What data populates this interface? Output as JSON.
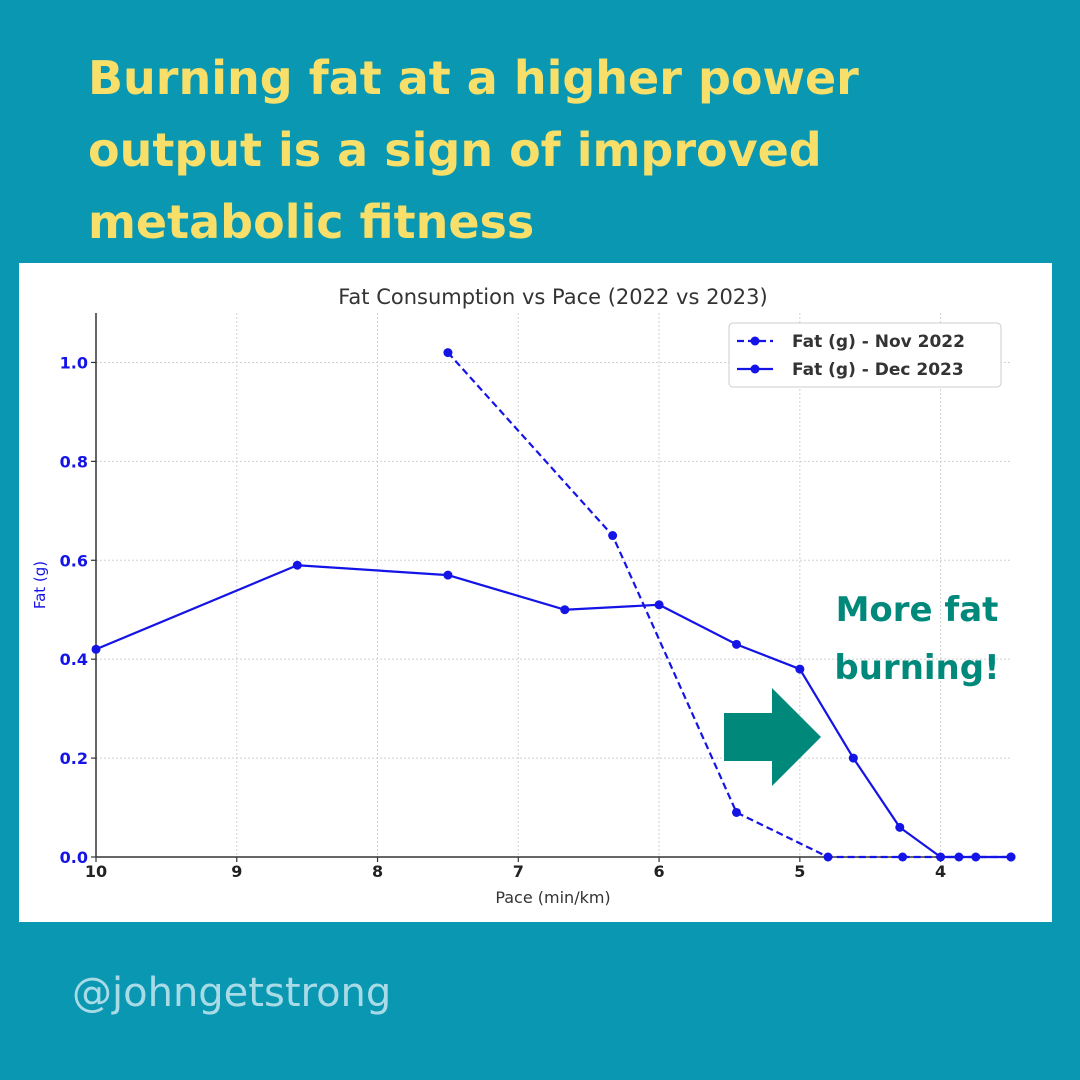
{
  "headline": "Burning fat at a higher power output is a sign of improved metabolic fitness",
  "handle": "@johngetstrong",
  "annotation": {
    "line1": "More fat",
    "line2": "burning!",
    "color": "#00897b",
    "arrow_color": "#00897b"
  },
  "colors": {
    "background": "#0a97b2",
    "headline": "#f7df6a",
    "series": "#1414e6"
  },
  "chart_data": {
    "type": "line",
    "title": "Fat Consumption vs Pace (2022 vs 2023)",
    "xlabel": "Pace (min/km)",
    "ylabel": "Fat (g)",
    "xlim": [
      10,
      3.5
    ],
    "ylim": [
      0,
      1.1
    ],
    "x_inverted": true,
    "grid": true,
    "legend_position": "top-right",
    "xticks": [
      10,
      9,
      8,
      7,
      6,
      5,
      4
    ],
    "yticks": [
      0.0,
      0.2,
      0.4,
      0.6,
      0.8,
      1.0
    ],
    "ytick_labels": [
      "0.0",
      "0.2",
      "0.4",
      "0.6",
      "0.8",
      "1.0"
    ],
    "series": [
      {
        "name": "Fat (g) - Nov 2022",
        "style": "dashed",
        "x": [
          7.5,
          6.33,
          5.45,
          4.8,
          4.27,
          3.5
        ],
        "y": [
          1.02,
          0.65,
          0.09,
          0.0,
          0.0,
          0.0
        ]
      },
      {
        "name": "Fat (g) - Dec 2023",
        "style": "solid",
        "x": [
          10,
          8.57,
          7.5,
          6.67,
          6.0,
          5.45,
          5.0,
          4.62,
          4.29,
          4.0,
          3.87,
          3.75,
          3.5
        ],
        "y": [
          0.42,
          0.59,
          0.57,
          0.5,
          0.51,
          0.43,
          0.38,
          0.2,
          0.06,
          0.0,
          0.0,
          0.0,
          0.0
        ]
      }
    ]
  }
}
